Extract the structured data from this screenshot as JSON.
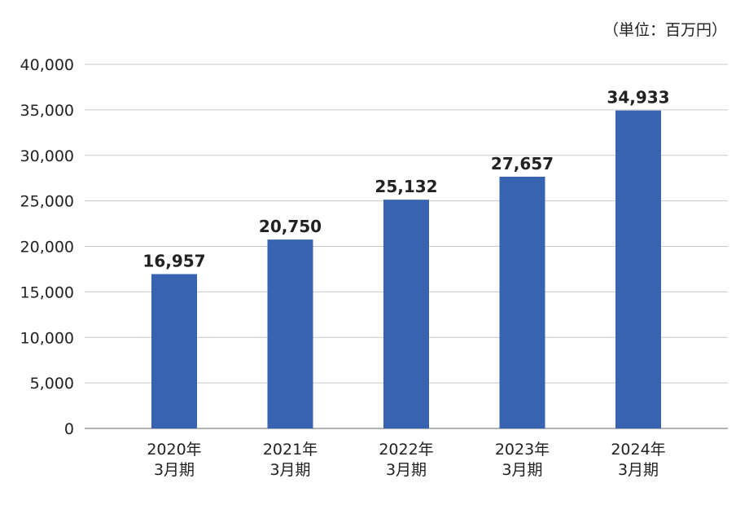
{
  "chart_data": {
    "type": "bar",
    "unit_label": "（単位：百万円）",
    "categories": [
      [
        "2020年",
        "3月期"
      ],
      [
        "2021年",
        "3月期"
      ],
      [
        "2022年",
        "3月期"
      ],
      [
        "2023年",
        "3月期"
      ],
      [
        "2024年",
        "3月期"
      ]
    ],
    "values": [
      16957,
      20750,
      25132,
      27657,
      34933
    ],
    "value_labels": [
      "16,957",
      "20,750",
      "25,132",
      "27,657",
      "34,933"
    ],
    "ylim": [
      0,
      40000
    ],
    "yticks": [
      0,
      5000,
      10000,
      15000,
      20000,
      25000,
      30000,
      35000,
      40000
    ],
    "ytick_labels": [
      "0",
      "5,000",
      "10,000",
      "15,000",
      "20,000",
      "25,000",
      "30,000",
      "35,000",
      "40,000"
    ],
    "grid": true,
    "bar_color": "#3763b1"
  }
}
